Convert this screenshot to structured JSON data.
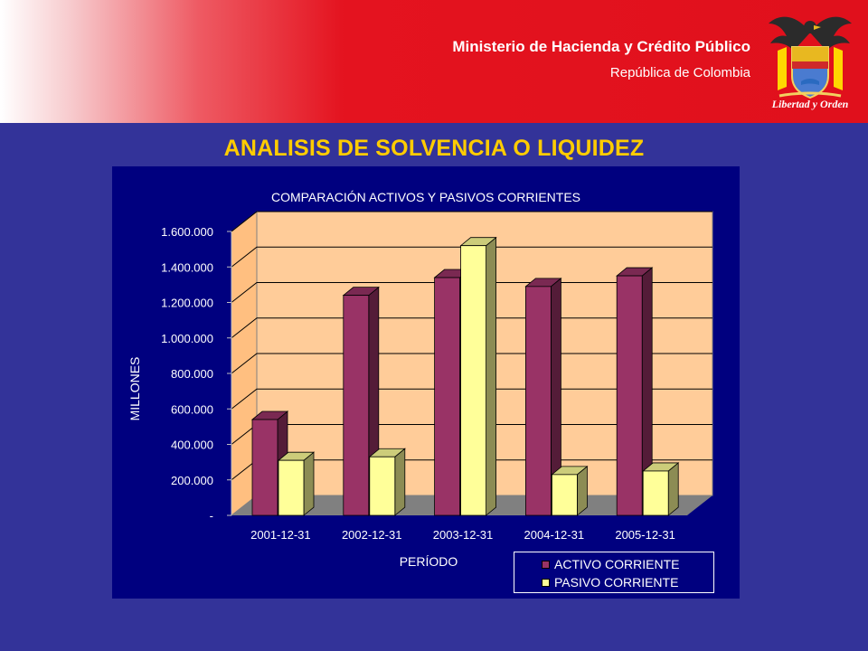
{
  "header": {
    "ministry": "Ministerio de Hacienda y Crédito Público",
    "republic": "República de Colombia",
    "motto": "Libertad y Orden",
    "crest_icon": "colombia-coat-of-arms-icon"
  },
  "slide": {
    "title": "ANALISIS DE SOLVENCIA O LIQUIDEZ"
  },
  "colors": {
    "background": "#333399",
    "header_red": "#e0101c",
    "title_yellow": "#ffcc00",
    "plot_wall": "#ffcc99"
  },
  "chart_data": {
    "type": "bar",
    "title": "COMPARACIÓN ACTIVOS Y PASIVOS CORRIENTES",
    "xlabel": "PERÍODO",
    "ylabel": "MILLONES",
    "categories": [
      "2001-12-31",
      "2002-12-31",
      "2003-12-31",
      "2004-12-31",
      "2005-12-31"
    ],
    "series": [
      {
        "name": "ACTIVO CORRIENTE",
        "color": "#993366",
        "values": [
          540000,
          1240000,
          1340000,
          1290000,
          1350000
        ]
      },
      {
        "name": "PASIVO CORRIENTE",
        "color": "#ffff99",
        "values": [
          310000,
          330000,
          1520000,
          230000,
          250000
        ]
      }
    ],
    "ylim": [
      0,
      1600000
    ],
    "yticks": [
      "-",
      "200.000",
      "400.000",
      "600.000",
      "800.000",
      "1.000.000",
      "1.200.000",
      "1.400.000",
      "1.600.000"
    ],
    "grid": true,
    "legend_position": "bottom-right"
  }
}
